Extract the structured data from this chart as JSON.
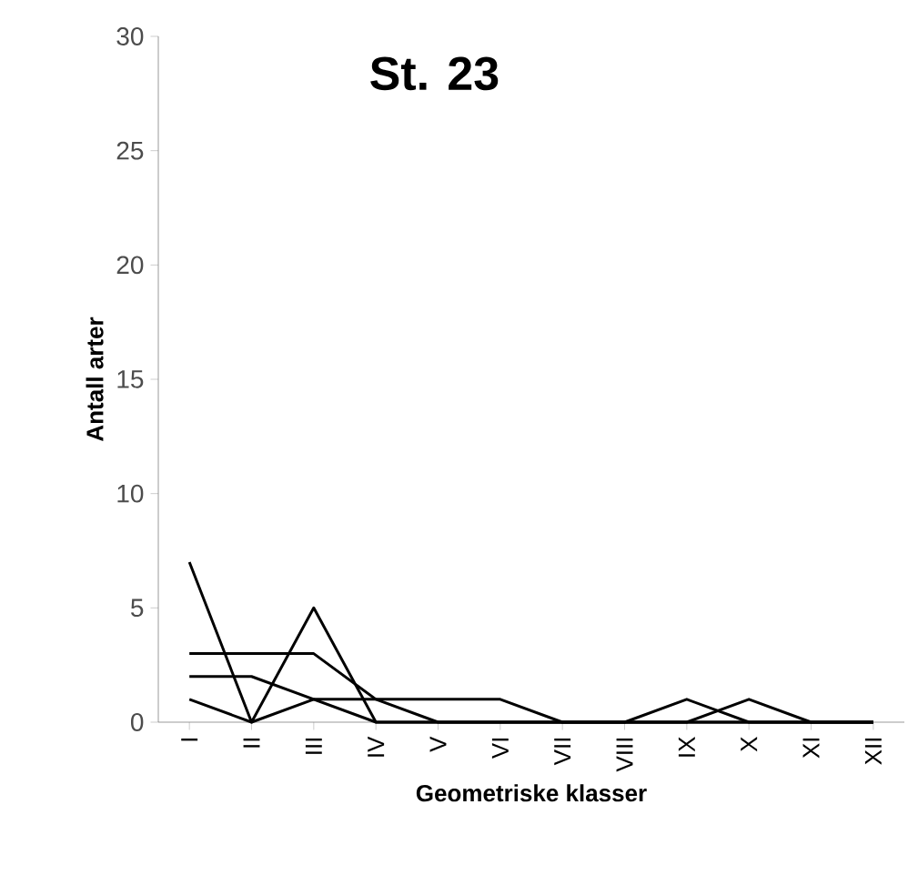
{
  "chart_data": {
    "type": "line",
    "title": "St. 23",
    "xlabel": "Geometriske klasser",
    "ylabel": "Antall arter",
    "categories": [
      "I",
      "II",
      "III",
      "IV",
      "V",
      "VI",
      "VII",
      "VIII",
      "IX",
      "X",
      "XI",
      "XII"
    ],
    "series": [
      {
        "color": "#000000",
        "values": [
          7,
          0,
          5,
          0,
          0,
          0,
          0,
          0,
          0,
          0,
          0,
          0
        ]
      },
      {
        "color": "#000000",
        "values": [
          3,
          3,
          3,
          1,
          1,
          1,
          0,
          0,
          0,
          0,
          0,
          0
        ]
      },
      {
        "color": "#000000",
        "values": [
          2,
          2,
          1,
          0,
          0,
          0,
          0,
          0,
          0,
          1,
          0,
          0
        ]
      },
      {
        "color": "#000000",
        "values": [
          1,
          0,
          1,
          1,
          0,
          0,
          0,
          0,
          1,
          0,
          0,
          0
        ]
      }
    ],
    "ylim": [
      0,
      30
    ],
    "yticks": [
      0,
      5,
      10,
      15,
      20,
      25,
      30
    ],
    "grid": false,
    "marker": "none",
    "line_style": "solid"
  }
}
